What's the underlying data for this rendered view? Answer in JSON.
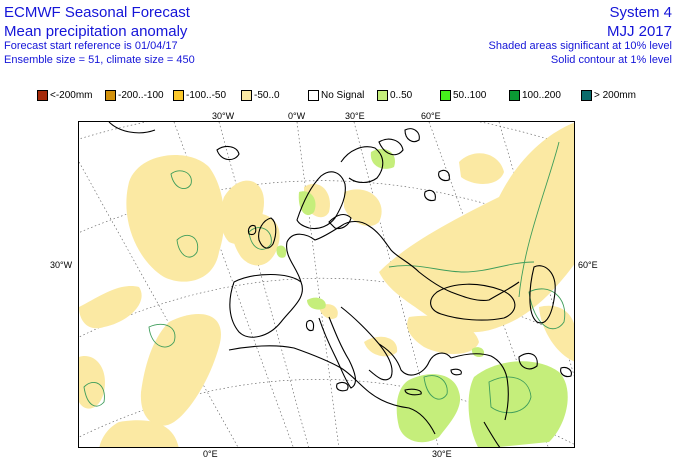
{
  "header": {
    "title": "ECMWF Seasonal Forecast",
    "subtitle": "Mean precipitation anomaly",
    "forecast_start": "Forecast start reference is 01/04/17",
    "ensemble": "Ensemble size = 51, climate size = 450",
    "system": "System 4",
    "period": "MJJ 2017",
    "shading_note": "Shaded areas significant at 10% level",
    "contour_note": "Solid contour at 1% level"
  },
  "legend": {
    "items": [
      {
        "label": "<-200mm",
        "color": "#a52a0a"
      },
      {
        "label": "-200..-100",
        "color": "#d2910c"
      },
      {
        "label": "-100..-50",
        "color": "#fbc82d"
      },
      {
        "label": "-50..0",
        "color": "#fbe9a3"
      },
      {
        "label": "No Signal",
        "color": "#ffffff"
      },
      {
        "label": "0..50",
        "color": "#c5ee7b"
      },
      {
        "label": "50..100",
        "color": "#46f01c"
      },
      {
        "label": "100..200",
        "color": "#0b9a34"
      },
      {
        "label": "> 200mm",
        "color": "#0b6b6b"
      }
    ]
  },
  "map": {
    "top_labels": [
      "30°W",
      "0°W",
      "30°E",
      "60°E"
    ],
    "bottom_labels": [
      "0°E",
      "30°E"
    ],
    "left_labels": [
      "30°W"
    ],
    "right_labels": [
      "60°E"
    ],
    "colors": {
      "dry_light": "#fbe9a3",
      "wet_light": "#c5ee7b",
      "wet_medium": "#46f01c",
      "contour": "#3f9d5b",
      "coast": "#000000",
      "grid": "#555555"
    }
  }
}
